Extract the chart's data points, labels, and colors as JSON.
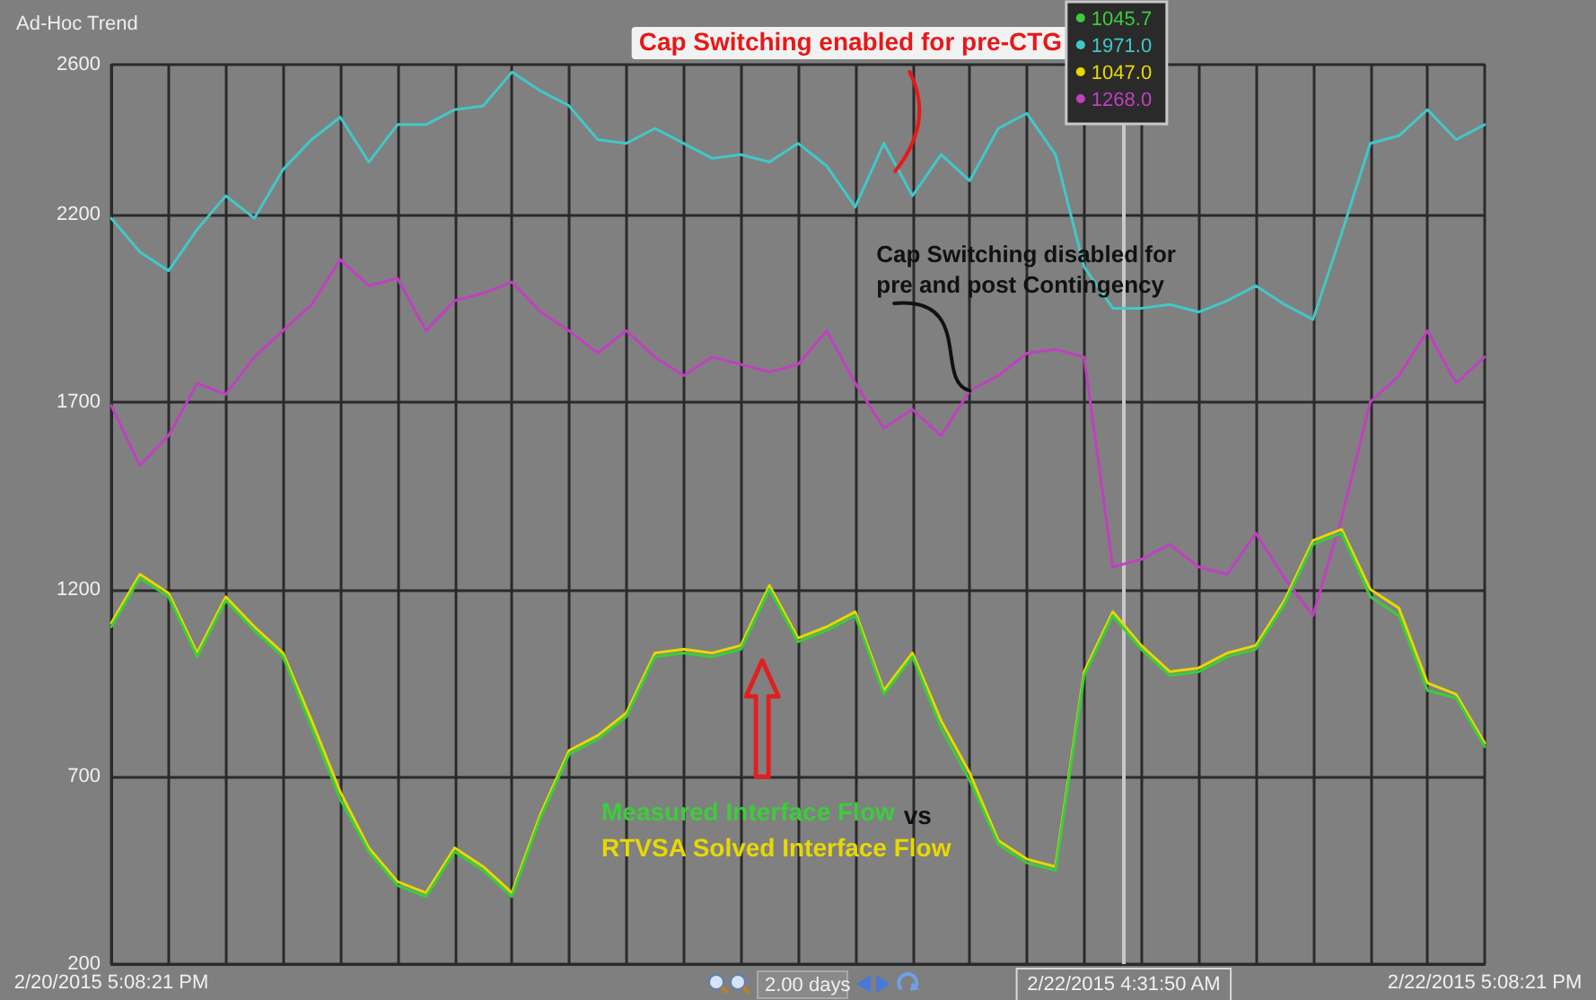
{
  "chart_data": {
    "type": "line",
    "title": "Ad-Hoc Trend",
    "x": [
      "2015-02-20T17:08",
      "2015-02-20T18:08",
      "2015-02-20T19:08",
      "2015-02-20T20:08",
      "2015-02-20T21:08",
      "2015-02-20T22:08",
      "2015-02-20T23:08",
      "2015-02-21T00:08",
      "2015-02-21T01:08",
      "2015-02-21T02:08",
      "2015-02-21T03:08",
      "2015-02-21T04:08",
      "2015-02-21T05:08",
      "2015-02-21T06:08",
      "2015-02-21T07:08",
      "2015-02-21T08:08",
      "2015-02-21T09:08",
      "2015-02-21T10:08",
      "2015-02-21T11:08",
      "2015-02-21T12:08",
      "2015-02-21T13:08",
      "2015-02-21T14:08",
      "2015-02-21T15:08",
      "2015-02-21T16:08",
      "2015-02-21T17:08",
      "2015-02-21T18:08",
      "2015-02-21T19:08",
      "2015-02-21T20:08",
      "2015-02-21T21:08",
      "2015-02-21T22:08",
      "2015-02-21T23:08",
      "2015-02-22T00:08",
      "2015-02-22T01:08",
      "2015-02-22T02:08",
      "2015-02-22T03:08",
      "2015-02-22T04:08",
      "2015-02-22T05:08",
      "2015-02-22T06:08",
      "2015-02-22T07:08",
      "2015-02-22T08:08",
      "2015-02-22T09:08",
      "2015-02-22T10:08",
      "2015-02-22T11:08",
      "2015-02-22T12:08",
      "2015-02-22T13:08",
      "2015-02-22T14:08",
      "2015-02-22T15:08",
      "2015-02-22T16:08",
      "2015-02-22T17:08"
    ],
    "series": [
      {
        "name": "Measured Interface Flow",
        "color": "#3ccc3c",
        "values": [
          1100,
          1230,
          1180,
          1020,
          1170,
          1090,
          1020,
          830,
          640,
          500,
          410,
          380,
          500,
          450,
          380,
          590,
          760,
          800,
          860,
          1020,
          1030,
          1020,
          1040,
          1200,
          1060,
          1090,
          1130,
          920,
          1020,
          830,
          690,
          520,
          470,
          450,
          970,
          1130,
          1040,
          970,
          980,
          1020,
          1040,
          1160,
          1320,
          1350,
          1180,
          1130,
          930,
          910,
          780
        ]
      },
      {
        "color": "#40c8c8",
        "values": [
          2190,
          2100,
          2050,
          2160,
          2250,
          2190,
          2320,
          2400,
          2460,
          2340,
          2440,
          2440,
          2480,
          2490,
          2580,
          2530,
          2490,
          2400,
          2390,
          2430,
          2390,
          2350,
          2360,
          2340,
          2390,
          2330,
          2220,
          2390,
          2250,
          2360,
          2290,
          2430,
          2470,
          2360,
          2060,
          1950,
          1950,
          1960,
          1940,
          1970,
          2010,
          1960,
          1920,
          2150,
          2390,
          2410,
          2480,
          2400,
          2440
        ]
      },
      {
        "name": "RTVSA Solved Interface Flow",
        "color": "#e8d800",
        "values": [
          1110,
          1240,
          1190,
          1030,
          1180,
          1100,
          1030,
          850,
          660,
          510,
          420,
          390,
          510,
          460,
          390,
          600,
          770,
          810,
          870,
          1030,
          1040,
          1030,
          1050,
          1210,
          1070,
          1100,
          1140,
          930,
          1030,
          850,
          710,
          530,
          480,
          460,
          980,
          1140,
          1050,
          980,
          990,
          1030,
          1050,
          1170,
          1330,
          1360,
          1200,
          1150,
          950,
          920,
          790
        ]
      },
      {
        "color": "#c040c0",
        "values": [
          1690,
          1530,
          1610,
          1750,
          1720,
          1820,
          1890,
          1960,
          2080,
          2010,
          2030,
          1890,
          1970,
          1990,
          2020,
          1940,
          1890,
          1830,
          1890,
          1820,
          1770,
          1820,
          1800,
          1780,
          1800,
          1890,
          1750,
          1630,
          1680,
          1610,
          1730,
          1770,
          1830,
          1840,
          1820,
          1260,
          1280,
          1320,
          1260,
          1240,
          1350,
          1230,
          1130,
          1390,
          1700,
          1770,
          1890,
          1750,
          1820
        ]
      }
    ],
    "xlim": [
      "2015-02-20T17:08",
      "2015-02-22T17:08"
    ],
    "xticks": [
      {
        "value": "2015-02-20T17:08",
        "label": "2/20/2015 5:08:21 PM"
      },
      {
        "value": "2015-02-20T19:08",
        "label": null
      },
      {
        "value": "2015-02-20T21:08",
        "label": null
      },
      {
        "value": "2015-02-20T23:08",
        "label": null
      },
      {
        "value": "2015-02-21T01:08",
        "label": null
      },
      {
        "value": "2015-02-21T03:08",
        "label": null
      },
      {
        "value": "2015-02-21T05:08",
        "label": null
      },
      {
        "value": "2015-02-21T07:08",
        "label": null
      },
      {
        "value": "2015-02-21T09:08",
        "label": null
      },
      {
        "value": "2015-02-21T11:08",
        "label": null
      },
      {
        "value": "2015-02-21T13:08",
        "label": null
      },
      {
        "value": "2015-02-21T15:08",
        "label": null
      },
      {
        "value": "2015-02-21T17:08",
        "label": null
      },
      {
        "value": "2015-02-21T19:08",
        "label": null
      },
      {
        "value": "2015-02-21T21:08",
        "label": null
      },
      {
        "value": "2015-02-21T23:08",
        "label": null
      },
      {
        "value": "2015-02-22T01:08",
        "label": null
      },
      {
        "value": "2015-02-22T03:08",
        "label": null
      },
      {
        "value": "2015-02-22T05:08",
        "label": null
      },
      {
        "value": "2015-02-22T07:08",
        "label": null
      },
      {
        "value": "2015-02-22T09:08",
        "label": null
      },
      {
        "value": "2015-02-22T11:08",
        "label": null
      },
      {
        "value": "2015-02-22T13:08",
        "label": null
      },
      {
        "value": "2015-02-22T15:08",
        "label": null
      },
      {
        "value": "2015-02-22T17:08",
        "label": "2/22/2015 5:08:21 PM"
      }
    ],
    "ylim": [
      200,
      2600
    ],
    "yticks": [
      200,
      700,
      1200,
      1700,
      2200,
      2600
    ],
    "grid": true,
    "marker": "none",
    "line_style": "solid",
    "ref_lines": [
      {
        "axis": "x",
        "value": "2015-02-22T04:31",
        "label": "2/22/2015 4:31:50 AM",
        "color": "#c8c8c8"
      }
    ],
    "annotations": [
      {
        "text": "Cap Switching enabled for pre-CTG",
        "x": "2015-02-21T20:32",
        "y": 2316
      },
      {
        "text": "Cap Switching disabled for pre and post Contingency",
        "x": "2015-02-21T23:08",
        "y": 1730
      },
      "1045.7",
      "1971.0",
      "1047.0",
      "1268.0",
      "vs",
      "2.00 days"
    ]
  }
}
